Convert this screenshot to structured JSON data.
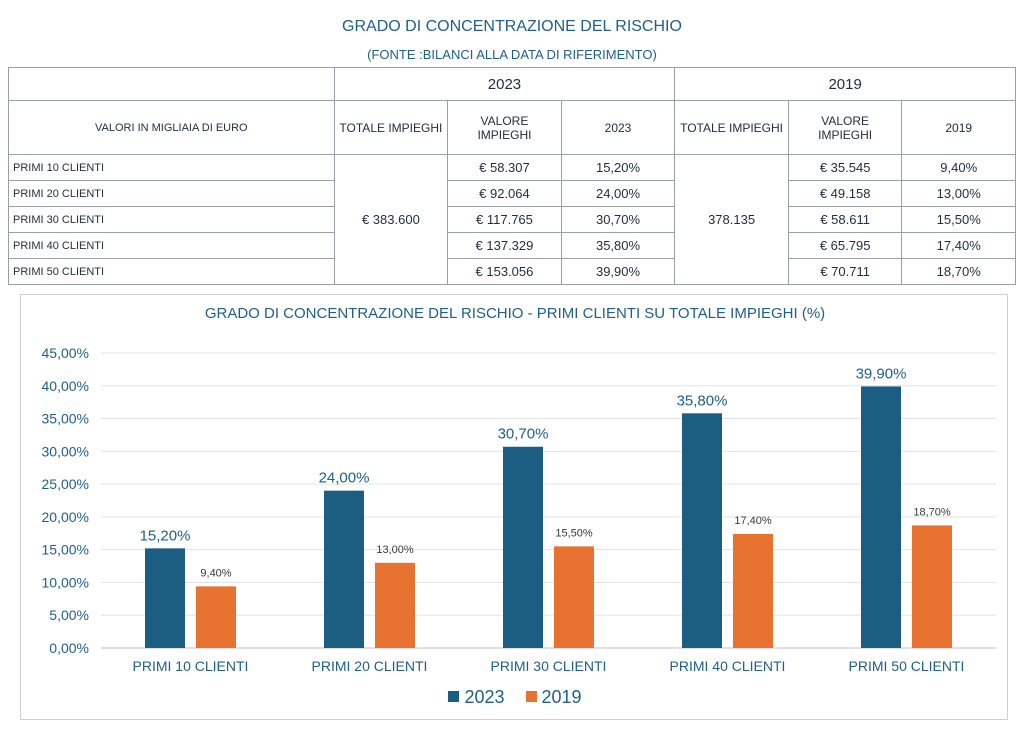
{
  "table": {
    "title": "GRADO DI CONCENTRAZIONE DEL RISCHIO",
    "subtitle": "(FONTE :BILANCI ALLA DATA DI RIFERIMENTO)",
    "year_a": "2023",
    "year_b": "2019",
    "header_label": "VALORI IN MIGLIAIA DI EURO",
    "col_total": "TOTALE IMPIEGHI",
    "col_value": "VALORE IMPIEGHI",
    "col_pct_a": "2023",
    "col_pct_b": "2019",
    "total_a": "€ 383.600",
    "total_b": "378.135",
    "rows": [
      {
        "label": "PRIMI 10 CLIENTI",
        "value_a": "€ 58.307",
        "pct_a": "15,20%",
        "value_b": "€ 35.545",
        "pct_b": "9,40%"
      },
      {
        "label": "PRIMI 20 CLIENTI",
        "value_a": "€ 92.064",
        "pct_a": "24,00%",
        "value_b": "€ 49.158",
        "pct_b": "13,00%"
      },
      {
        "label": "PRIMI 30 CLIENTI",
        "value_a": "€ 117.765",
        "pct_a": "30,70%",
        "value_b": "€ 58.611",
        "pct_b": "15,50%"
      },
      {
        "label": "PRIMI 40 CLIENTI",
        "value_a": "€ 137.329",
        "pct_a": "35,80%",
        "value_b": "€ 65.795",
        "pct_b": "17,40%"
      },
      {
        "label": "PRIMI 50 CLIENTI",
        "value_a": "€ 153.056",
        "pct_a": "39,90%",
        "value_b": "€ 70.711",
        "pct_b": "18,70%"
      }
    ]
  },
  "chart_data": {
    "type": "bar",
    "title": "GRADO DI CONCENTRAZIONE DEL RISCHIO - PRIMI CLIENTI SU TOTALE IMPIEGHI (%)",
    "categories": [
      "PRIMI 10 CLIENTI",
      "PRIMI 20 CLIENTI",
      "PRIMI 30 CLIENTI",
      "PRIMI 40 CLIENTI",
      "PRIMI 50 CLIENTI"
    ],
    "series": [
      {
        "name": "2023",
        "values": [
          15.2,
          24.0,
          30.7,
          35.8,
          39.9
        ],
        "labels": [
          "15,20%",
          "24,00%",
          "30,70%",
          "35,80%",
          "39,90%"
        ],
        "color": "#1b5e82"
      },
      {
        "name": "2019",
        "values": [
          9.4,
          13.0,
          15.5,
          17.4,
          18.7
        ],
        "labels": [
          "9,40%",
          "13,00%",
          "15,50%",
          "17,40%",
          "18,70%"
        ],
        "color": "#e87230"
      }
    ],
    "ylim": [
      0,
      45
    ],
    "yticks": [
      0,
      5,
      10,
      15,
      20,
      25,
      30,
      35,
      40,
      45
    ],
    "ytick_labels": [
      "0,00%",
      "5,00%",
      "10,00%",
      "15,00%",
      "20,00%",
      "25,00%",
      "30,00%",
      "35,00%",
      "40,00%",
      "45,00%"
    ],
    "xlabel": "",
    "ylabel": "",
    "grid": true,
    "legend": "bottom"
  }
}
